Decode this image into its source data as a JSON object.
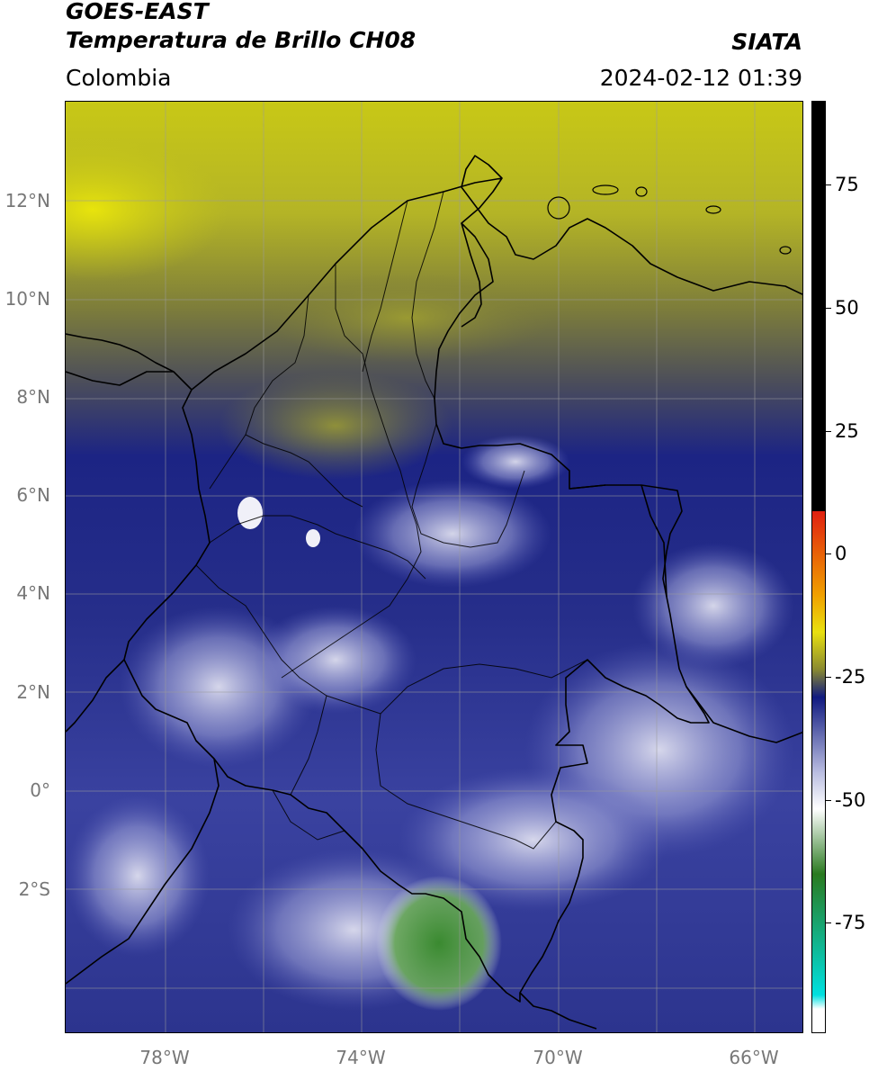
{
  "header": {
    "title_line1": "GOES-EAST",
    "title_line2": "Temperatura de Brillo CH08",
    "region": "Colombia",
    "organization": "SIATA",
    "datetime": "2024-02-12 01:39"
  },
  "map": {
    "lat_labels": [
      "12°N",
      "10°N",
      "8°N",
      "6°N",
      "4°N",
      "2°N",
      "0°",
      "2°S"
    ],
    "lon_labels": [
      "78°W",
      "74°W",
      "70°W",
      "66°W"
    ]
  },
  "colorbar": {
    "tick_labels": [
      "75",
      "50",
      "25",
      "0",
      "-25",
      "-50",
      "-75"
    ],
    "colors": {
      "top": "#000000",
      "red": "#e02010",
      "orange": "#f0a000",
      "yellow": "#e8e010",
      "olive": "#8a8a30",
      "navy": "#101a80",
      "lavender": "#b8bce0",
      "white": "#ffffff",
      "green": "#2a7a20",
      "cyan": "#00e0e0"
    }
  }
}
